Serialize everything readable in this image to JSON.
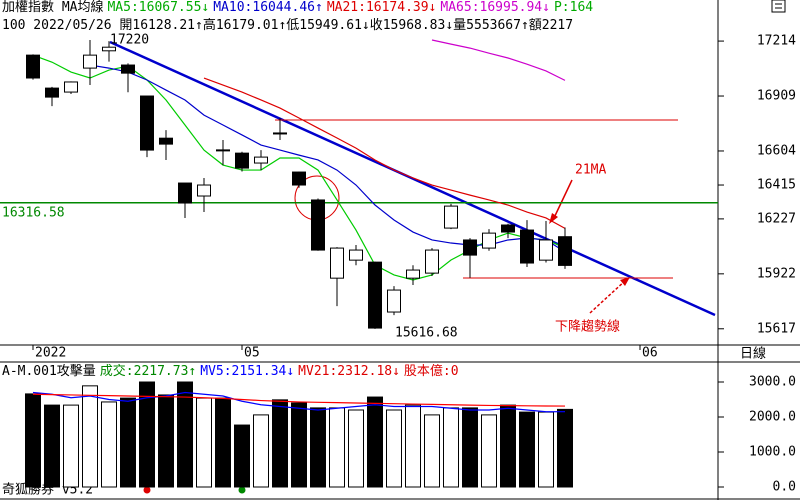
{
  "header": {
    "line2": "100 2022/05/26 開16128.21↑高16179.01↑低15949.61↓收15968.83↓量5553667↑額2217"
  },
  "footer": "奇狐勝券 v5.2",
  "chart_data": [
    {
      "type": "candlestick",
      "title": "加權指數 MA均線",
      "legend_texts": [
        "MA5:16067.55↓",
        "MA10:16044.46↑",
        "MA21:16174.39↓",
        "MA65:16995.94↓",
        "P:164"
      ],
      "categories": [
        "2022",
        null,
        null,
        null,
        null,
        null,
        null,
        null,
        null,
        null,
        null,
        "05",
        null,
        null,
        null,
        null,
        null,
        null,
        null,
        null,
        null,
        null,
        null,
        null,
        null,
        null,
        null,
        null,
        null
      ],
      "next_label": "06",
      "period": "日線",
      "open": [
        17136,
        16953,
        16931,
        17064,
        17160,
        17081,
        16909,
        16675,
        16426,
        16354,
        16610,
        16592,
        16537,
        16704,
        16487,
        16332,
        15898,
        15998,
        15987,
        15710,
        15898,
        15926,
        16176,
        16110,
        16065,
        16193,
        16165,
        15998,
        16128.21
      ],
      "high": [
        17140,
        16960,
        16990,
        17220,
        17213.66,
        17090,
        16909,
        16720,
        16426,
        16454,
        16665,
        16600,
        16609,
        16787,
        16490,
        16340,
        16070,
        16082,
        15990,
        15854,
        15970,
        16065,
        16310,
        16120,
        16170,
        16200,
        16220,
        16215,
        16179.01
      ],
      "low": [
        17000,
        16853,
        16920,
        16970,
        17100,
        16930,
        16570,
        16554,
        16232,
        16265,
        16525,
        16490,
        16498,
        16665,
        16400,
        16050,
        15743,
        15970,
        15616.68,
        15693,
        15860,
        15910,
        16170,
        15900,
        16050,
        16120,
        15960,
        15985,
        15949.61
      ],
      "close": [
        17009,
        16903,
        16987,
        17136,
        17180,
        17036,
        16609,
        16642,
        16315,
        16415,
        16605,
        16509,
        16570,
        16700,
        16415,
        16054,
        16065,
        16054,
        15621,
        15832,
        15943,
        16054,
        16298,
        16026,
        16148,
        16154,
        15982,
        16110,
        15968.83
      ],
      "series": [
        {
          "name": "MA5",
          "color": "#00cc00",
          "values": [
            17136,
            17097,
            17042,
            17009,
            17053,
            17075,
            16998,
            16887,
            16748,
            16609,
            16526,
            16498,
            16498,
            16565,
            16565,
            16498,
            16332,
            16165,
            15971,
            15916,
            15888,
            15916,
            15999,
            16054,
            16110,
            16148,
            16121,
            16110,
            16067.55
          ]
        },
        {
          "name": "MA10",
          "color": "#0000cc",
          "values": [
            null,
            null,
            null,
            17081,
            17064,
            17042,
            16998,
            16942,
            16887,
            16803,
            16748,
            16693,
            16637,
            16609,
            16581,
            16554,
            16498,
            16415,
            16304,
            16221,
            16154,
            16110,
            16093,
            16082,
            16082,
            16110,
            16121,
            16110,
            16044.46
          ]
        },
        {
          "name": "MA21",
          "color": "#dd0000",
          "values": [
            null,
            null,
            null,
            null,
            null,
            null,
            null,
            null,
            null,
            17009,
            16970,
            16931,
            16887,
            16842,
            16787,
            16731,
            16676,
            16620,
            16554,
            16498,
            16454,
            16415,
            16387,
            16359,
            16332,
            16304,
            16265,
            16232,
            16174.39
          ]
        },
        {
          "name": "MA65",
          "color": "#cc00cc",
          "values": [
            null,
            null,
            null,
            null,
            null,
            null,
            null,
            null,
            null,
            null,
            null,
            null,
            null,
            null,
            null,
            null,
            null,
            null,
            null,
            null,
            null,
            17220,
            17197,
            17175,
            17147,
            17120,
            17086,
            17048,
            16995.94
          ]
        }
      ],
      "level": 16316.58,
      "annotations": [
        "21MA",
        "下降趨勢線"
      ],
      "ylim": [
        15527,
        17442
      ],
      "yticks": [
        17214,
        16909,
        16604,
        16415,
        16227,
        15922,
        15617
      ]
    },
    {
      "type": "bar",
      "title": "A-M.001攻擊量",
      "legend_texts": [
        "成交:2217.73↑",
        "MV5:2151.34↓",
        "MV21:2312.18↓",
        "股本億:0"
      ],
      "values": [
        2660,
        2340,
        2340,
        2890,
        2430,
        2540,
        3000,
        2630,
        3000,
        2540,
        2540,
        1770,
        2060,
        2490,
        2400,
        2260,
        2260,
        2200,
        2570,
        2200,
        2340,
        2060,
        2260,
        2260,
        2060,
        2340,
        2140,
        2140,
        2217.73
      ],
      "series": [
        {
          "name": "MV5",
          "color": "#0000ff",
          "values": [
            2700,
            2650,
            2550,
            2600,
            2500,
            2450,
            2550,
            2600,
            2700,
            2650,
            2600,
            2450,
            2350,
            2300,
            2250,
            2200,
            2250,
            2300,
            2350,
            2300,
            2300,
            2300,
            2250,
            2200,
            2200,
            2250,
            2200,
            2150,
            2151.34
          ]
        },
        {
          "name": "MV21",
          "color": "#ff0000",
          "values": [
            2650,
            2640,
            2630,
            2620,
            2610,
            2600,
            2590,
            2580,
            2570,
            2550,
            2530,
            2500,
            2470,
            2450,
            2430,
            2420,
            2410,
            2400,
            2390,
            2380,
            2370,
            2360,
            2350,
            2340,
            2330,
            2325,
            2320,
            2315,
            2312.18
          ]
        }
      ],
      "ylim": [
        0,
        3600
      ],
      "yticks": [
        {
          "value": 3000,
          "label": "3000.0"
        },
        {
          "value": 2000,
          "label": "2000.0"
        },
        {
          "value": 1000,
          "label": "1000.0"
        },
        {
          "value": 0,
          "label": "0.0"
        }
      ]
    }
  ]
}
